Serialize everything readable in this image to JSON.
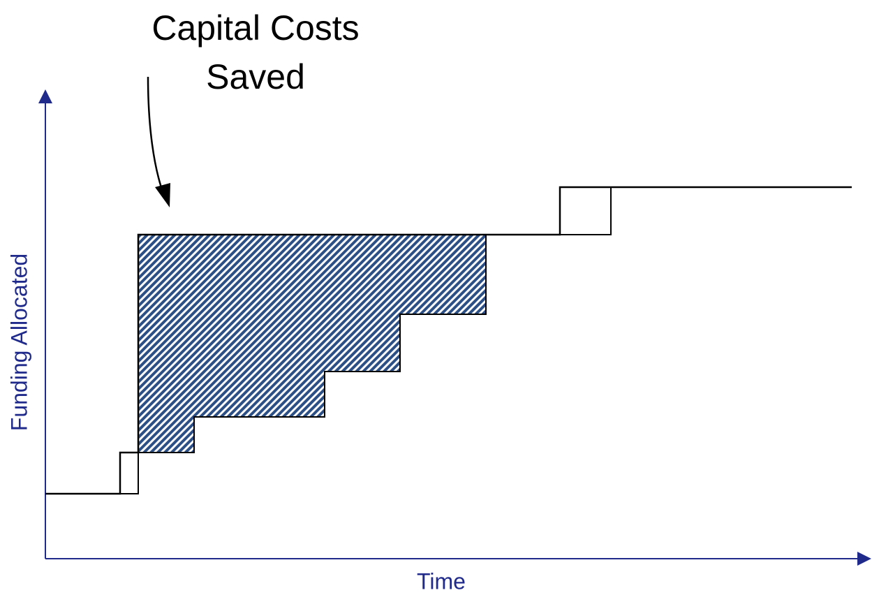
{
  "annotation": {
    "lines": [
      "Capital Costs",
      "Saved"
    ]
  },
  "axes": {
    "y_label": "Funding Allocated",
    "x_label": "Time"
  }
}
